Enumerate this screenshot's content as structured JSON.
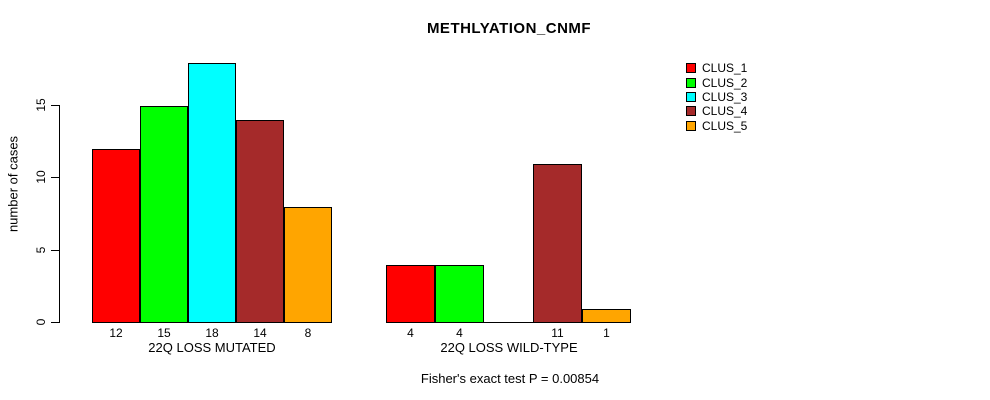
{
  "title": "METHLYATION_CNMF",
  "footer": "Fisher's exact test P = 0.00854",
  "chart_data": {
    "type": "bar",
    "title": "METHLYATION_CNMF",
    "ylabel": "number of cases",
    "xlabel": "",
    "yticks": [
      0,
      5,
      10,
      15
    ],
    "ylim": [
      0,
      18
    ],
    "grid": false,
    "legend_position": "top-right",
    "series": [
      {
        "name": "CLUS_1",
        "color": "#FF0000"
      },
      {
        "name": "CLUS_2",
        "color": "#00FF00"
      },
      {
        "name": "CLUS_3",
        "color": "#00FFFF"
      },
      {
        "name": "CLUS_4",
        "color": "#A52A2A"
      },
      {
        "name": "CLUS_5",
        "color": "#FFA500"
      }
    ],
    "groups": [
      {
        "label": "22Q LOSS MUTATED",
        "values": [
          12,
          15,
          18,
          14,
          8
        ],
        "bar_labels": [
          "12",
          "15",
          "18",
          "14",
          "8"
        ]
      },
      {
        "label": "22Q LOSS WILD-TYPE",
        "values": [
          4,
          4,
          0,
          11,
          1
        ],
        "bar_labels": [
          "4",
          "4",
          "",
          "11",
          "1"
        ]
      }
    ],
    "annotation": "Fisher's exact test P = 0.00854"
  }
}
